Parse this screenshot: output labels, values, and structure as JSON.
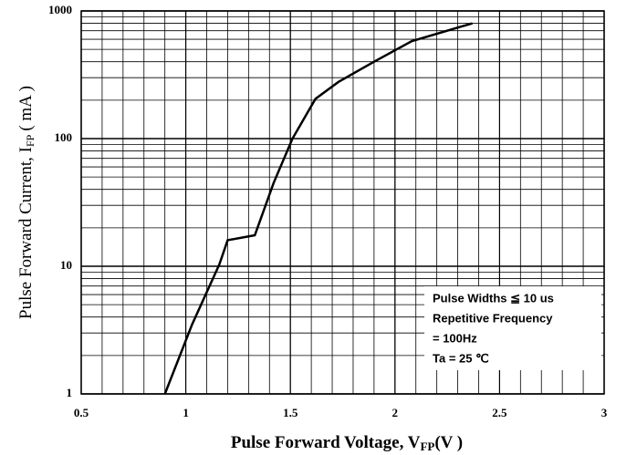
{
  "chart_data": {
    "type": "line",
    "x_label": {
      "main": "Pulse Forward Voltage, V",
      "sub": "FP",
      "unit": "(V )"
    },
    "y_label": {
      "main": "Pulse Forward Current, I",
      "sub": "FP",
      "unit": "( mA )"
    },
    "annotations": [
      "Pulse Widths ≦ 10 us",
      "Repetitive Frequency",
      "= 100Hz",
      "Ta = 25 ℃"
    ],
    "x": [
      0.9,
      1.03,
      1.16,
      1.2,
      1.33,
      1.42,
      1.51,
      1.62,
      1.73,
      1.9,
      2.08,
      2.37
    ],
    "series": [
      {
        "name": "IFP",
        "color": "#000000",
        "values": [
          1,
          3.5,
          10.3,
          16,
          17.5,
          45,
          100,
          205,
          278,
          400,
          580,
          800
        ]
      }
    ],
    "xlim": [
      0.5,
      3
    ],
    "xticks": [
      0.5,
      1,
      1.5,
      2,
      2.5,
      3
    ],
    "ylim": [
      1,
      1000
    ],
    "yticks": [
      1,
      10,
      100,
      1000
    ],
    "y_log_scale": true,
    "grid": true
  }
}
